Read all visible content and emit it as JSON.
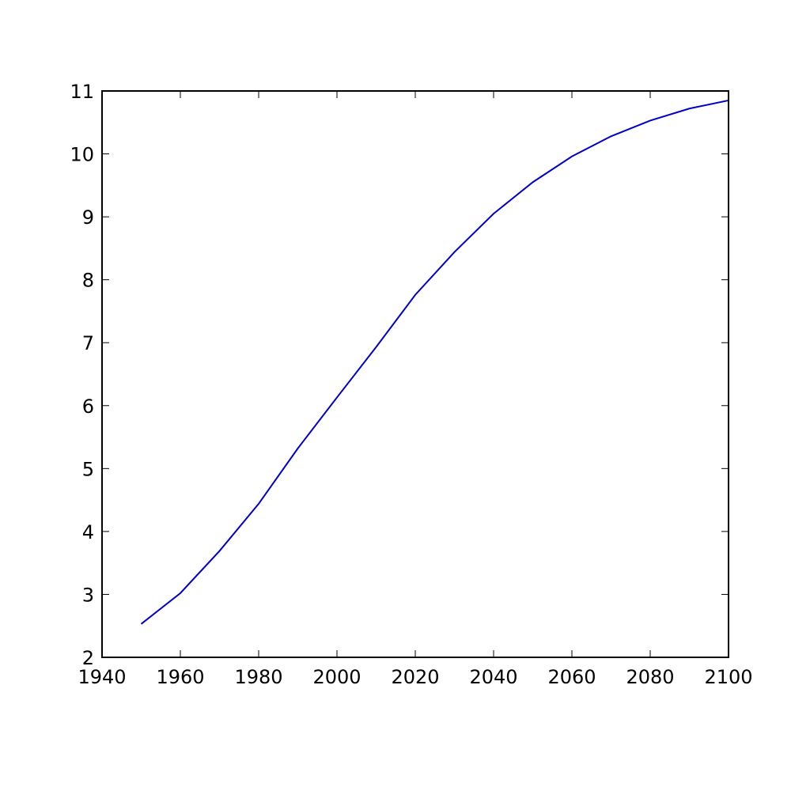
{
  "chart_data": {
    "type": "line",
    "x": [
      1950,
      1960,
      1970,
      1980,
      1990,
      2000,
      2010,
      2020,
      2030,
      2040,
      2050,
      2060,
      2070,
      2080,
      2090,
      2100
    ],
    "series": [
      {
        "color": "#0000cc",
        "values": [
          2.53,
          3.02,
          3.69,
          4.44,
          5.32,
          6.13,
          6.93,
          7.76,
          8.44,
          9.05,
          9.55,
          9.96,
          10.28,
          10.53,
          10.72,
          10.85
        ]
      }
    ],
    "xlim": [
      1940,
      2100
    ],
    "xticks": [
      1940,
      1960,
      1980,
      2000,
      2020,
      2040,
      2060,
      2080,
      2100
    ],
    "ylim": [
      2,
      11
    ],
    "yticks": [
      2,
      3,
      4,
      5,
      6,
      7,
      8,
      9,
      10,
      11
    ]
  }
}
